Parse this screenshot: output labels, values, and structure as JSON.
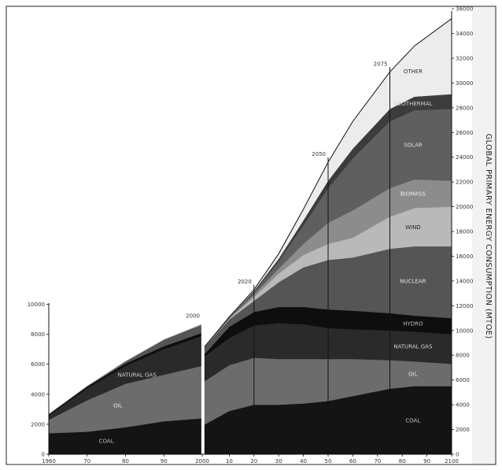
{
  "chart_data": {
    "type": "area",
    "ylabel": "GLOBAL PRIMARY ENERGY CONSUMPTION (MTOE)",
    "x_tick_labels": [
      "1960",
      "70",
      "80",
      "90",
      "2000",
      "10",
      "20",
      "30",
      "40",
      "50",
      "60",
      "70",
      "80",
      "90",
      "2100"
    ],
    "left_y_ticks": [
      0,
      2000,
      4000,
      6000,
      8000,
      10000
    ],
    "right_y_ticks": [
      0,
      2000,
      4000,
      6000,
      8000,
      10000,
      12000,
      14000,
      16000,
      18000,
      20000,
      22000,
      24000,
      26000,
      28000,
      30000,
      32000,
      34000,
      36000
    ],
    "right_ylim": [
      0,
      36000
    ],
    "milestones": [
      {
        "label": "2000",
        "x": 2000
      },
      {
        "label": "2020",
        "x": 2020
      },
      {
        "label": "2050",
        "x": 2050
      },
      {
        "label": "2075",
        "x": 2075
      }
    ],
    "x": [
      1960,
      1970,
      1980,
      1990,
      2000,
      2010,
      2020,
      2030,
      2040,
      2050,
      2060,
      2075,
      2085,
      2100
    ],
    "series": [
      {
        "name": "COAL",
        "color": "#141414",
        "label_color": "#bbbbbb",
        "values": [
          1400,
          1500,
          1800,
          2200,
          2400,
          3500,
          4000,
          4000,
          4100,
          4300,
          4700,
          5300,
          5500,
          5500
        ]
      },
      {
        "name": "OIL",
        "color": "#6c6c6c",
        "label_color": "#e2e2e2",
        "values": [
          900,
          2100,
          2900,
          3100,
          3500,
          3700,
          3800,
          3700,
          3600,
          3400,
          3000,
          2300,
          2000,
          1800
        ]
      },
      {
        "name": "NATURAL GAS",
        "color": "#2a2a2a",
        "label_color": "#cfcfcf",
        "values": [
          300,
          800,
          1200,
          1700,
          2000,
          2200,
          2600,
          2900,
          2800,
          2500,
          2400,
          2400,
          2400,
          2400
        ]
      },
      {
        "name": "HYDRO",
        "color": "#0e0e0e",
        "label_color": "#bdbdbd",
        "values": [
          80,
          120,
          150,
          200,
          200,
          900,
          1100,
          1300,
          1400,
          1500,
          1500,
          1400,
          1300,
          1300
        ]
      },
      {
        "name": "NUCLEAR",
        "color": "#555555",
        "label_color": "#e0e0e0",
        "values": [
          0,
          30,
          150,
          450,
          550,
          600,
          900,
          2000,
          3200,
          4000,
          4300,
          5200,
          5600,
          5800
        ]
      },
      {
        "name": "WIND",
        "color": "#b9b9b9",
        "label_color": "#222222",
        "values": [
          0,
          0,
          0,
          0,
          10,
          50,
          300,
          700,
          1000,
          1300,
          1600,
          2600,
          3100,
          3200
        ]
      },
      {
        "name": "BIOMASS",
        "color": "#8c8c8c",
        "label_color": "#eeeeee",
        "values": [
          0,
          0,
          0,
          0,
          10,
          50,
          200,
          400,
          900,
          1700,
          2200,
          2300,
          2300,
          2100
        ]
      },
      {
        "name": "SOLAR",
        "color": "#5f5f5f",
        "label_color": "#dddddd",
        "values": [
          0,
          0,
          0,
          0,
          5,
          30,
          200,
          600,
          1500,
          2800,
          4200,
          5400,
          5600,
          5800
        ]
      },
      {
        "name": "GEOTHERMAL",
        "color": "#3c3c3c",
        "label_color": "#cfcfcf",
        "values": [
          0,
          0,
          0,
          0,
          5,
          30,
          100,
          200,
          400,
          600,
          800,
          1000,
          1100,
          1200
        ]
      },
      {
        "name": "OTHER",
        "color": "#ececec",
        "label_color": "#333333",
        "values": [
          0,
          0,
          0,
          0,
          5,
          40,
          100,
          400,
          900,
          1500,
          2200,
          3000,
          4100,
          6100
        ]
      }
    ]
  }
}
